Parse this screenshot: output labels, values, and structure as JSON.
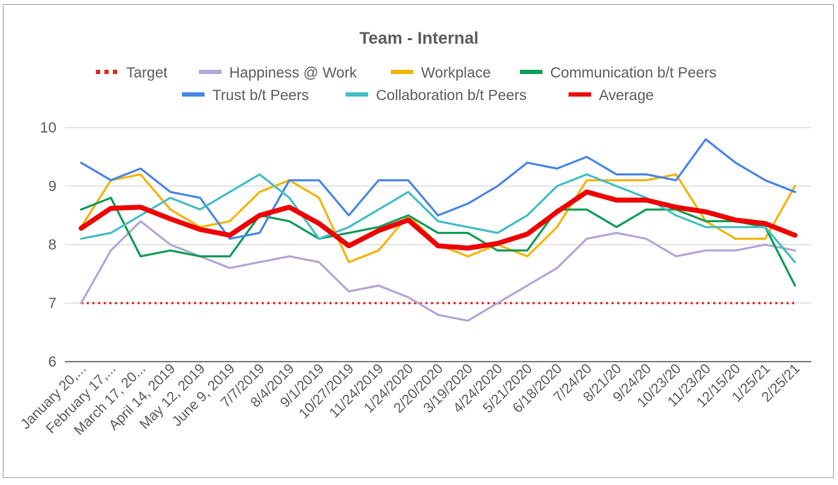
{
  "chart_data": {
    "type": "line",
    "title": "Team - Internal",
    "xlabel": "",
    "ylabel": "",
    "ylim": [
      6,
      10
    ],
    "yticks": [
      6,
      7,
      8,
      9,
      10
    ],
    "grid": true,
    "legend_position": "top",
    "categories": [
      "January 20,...",
      "February 17,...",
      "March 17, 20...",
      "April 14, 2019",
      "May 12, 2019",
      "June 9, 2019",
      "7/7/2019",
      "8/4/2019",
      "9/1/2019",
      "10/27/2019",
      "11/24/2019",
      "1/24/2020",
      "2/20/2020",
      "3/19/2020",
      "4/24/2020",
      "5/21/2020",
      "6/18/2020",
      "7/24/20",
      "8/21/20",
      "9/24/20",
      "10/23/20",
      "11/23/20",
      "12/15/20",
      "1/25/21",
      "2/25/21"
    ],
    "series": [
      {
        "name": "Target",
        "color": "#e8231e",
        "style": "dotted",
        "values": [
          7,
          7,
          7,
          7,
          7,
          7,
          7,
          7,
          7,
          7,
          7,
          7,
          7,
          7,
          7,
          7,
          7,
          7,
          7,
          7,
          7,
          7,
          7,
          7,
          7
        ]
      },
      {
        "name": "Happiness @ Work",
        "color": "#b4a7d6",
        "style": "solid",
        "values": [
          7.0,
          7.9,
          8.4,
          8.0,
          7.8,
          7.6,
          7.7,
          7.8,
          7.7,
          7.2,
          7.3,
          7.1,
          6.8,
          6.7,
          7.0,
          7.3,
          7.6,
          8.1,
          8.2,
          8.1,
          7.8,
          7.9,
          7.9,
          8.0,
          7.9
        ]
      },
      {
        "name": "Workplace",
        "color": "#f4b400",
        "style": "solid",
        "values": [
          8.3,
          9.1,
          9.2,
          8.6,
          8.3,
          8.4,
          8.9,
          9.1,
          8.8,
          7.7,
          7.9,
          8.5,
          8.0,
          7.8,
          8.0,
          7.8,
          8.3,
          9.1,
          9.1,
          9.1,
          9.2,
          8.4,
          8.1,
          8.1,
          9.0
        ]
      },
      {
        "name": "Communication b/t Peers",
        "color": "#0f9d58",
        "style": "solid",
        "values": [
          8.6,
          8.8,
          7.8,
          7.9,
          7.8,
          7.8,
          8.5,
          8.4,
          8.1,
          8.2,
          8.3,
          8.5,
          8.2,
          8.2,
          7.9,
          7.9,
          8.6,
          8.6,
          8.3,
          8.6,
          8.6,
          8.4,
          8.4,
          8.3,
          7.3
        ]
      },
      {
        "name": "Trust b/t Peers",
        "color": "#4a86e8",
        "style": "solid",
        "values": [
          9.4,
          9.1,
          9.3,
          8.9,
          8.8,
          8.1,
          8.2,
          9.1,
          9.1,
          8.5,
          9.1,
          9.1,
          8.5,
          8.7,
          9.0,
          9.4,
          9.3,
          9.5,
          9.2,
          9.2,
          9.1,
          9.8,
          9.4,
          9.1,
          8.9
        ]
      },
      {
        "name": "Collaboration b/t Peers",
        "color": "#46bdc6",
        "style": "solid",
        "values": [
          8.1,
          8.2,
          8.5,
          8.8,
          8.6,
          8.9,
          9.2,
          8.8,
          8.1,
          8.3,
          8.6,
          8.9,
          8.4,
          8.3,
          8.2,
          8.5,
          9.0,
          9.2,
          9.0,
          8.8,
          8.5,
          8.3,
          8.3,
          8.3,
          7.7
        ]
      },
      {
        "name": "Average",
        "color": "#ee0000",
        "style": "bold",
        "values": [
          8.28,
          8.62,
          8.64,
          8.44,
          8.26,
          8.16,
          8.5,
          8.64,
          8.36,
          7.98,
          8.24,
          8.42,
          7.98,
          7.94,
          8.02,
          8.18,
          8.56,
          8.9,
          8.76,
          8.76,
          8.64,
          8.56,
          8.42,
          8.36,
          8.16
        ]
      }
    ]
  }
}
